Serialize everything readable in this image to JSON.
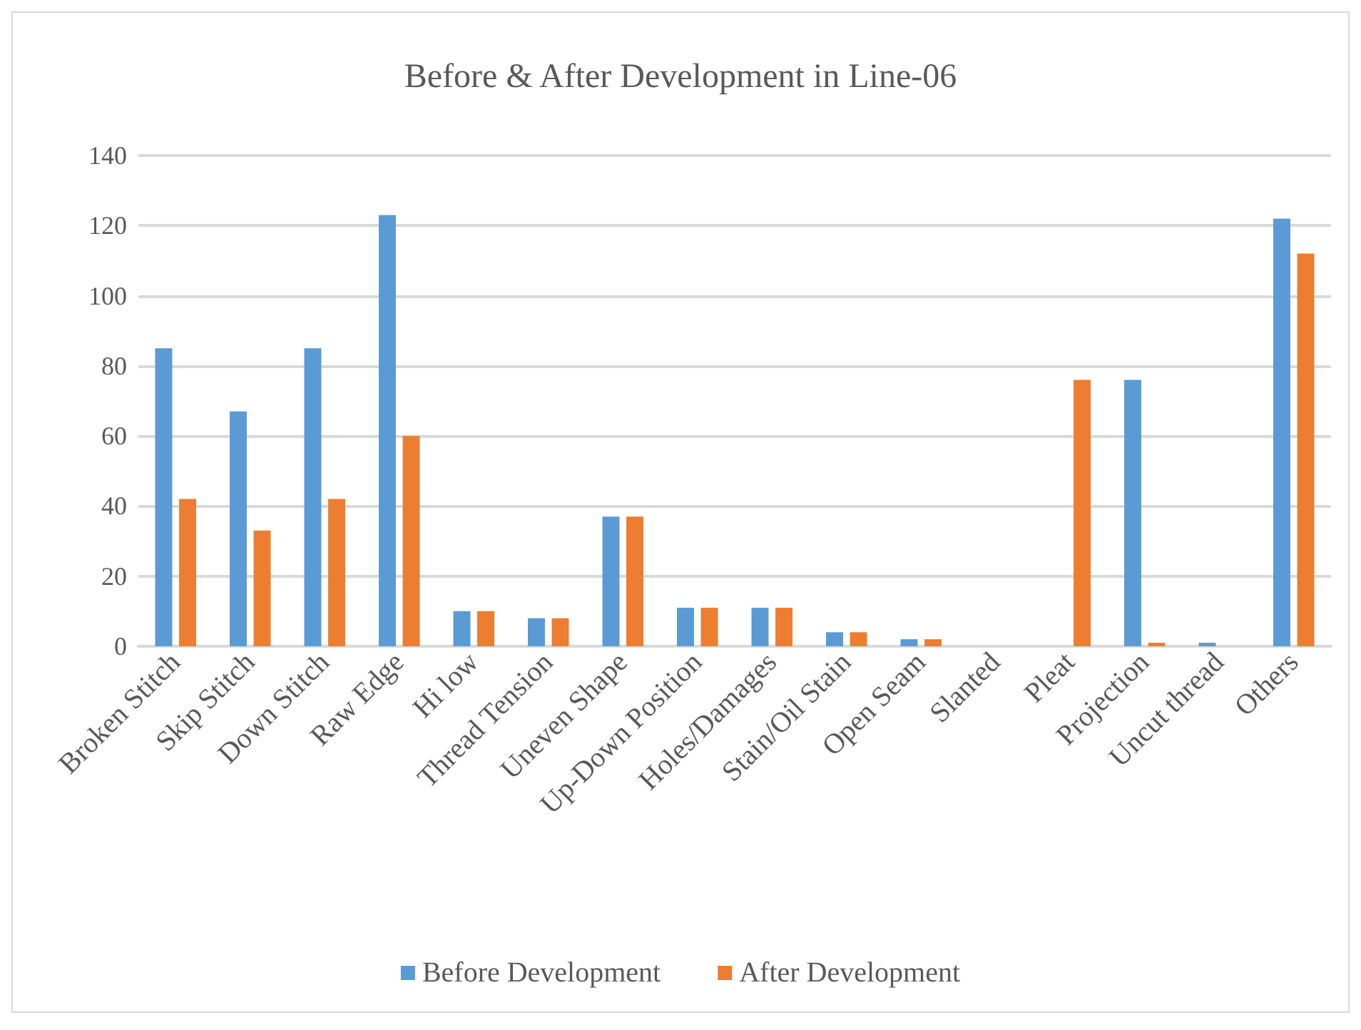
{
  "chart_data": {
    "type": "bar",
    "title": "Before & After Development in Line-06",
    "categories": [
      "Broken Stitch",
      "Skip Stitch",
      "Down Stitch",
      "Raw Edge",
      "Hi low",
      "Thread Tension",
      "Uneven Shape",
      "Up-Down Position",
      "Holes/Damages",
      "Stain/Oil Stain",
      "Open Seam",
      "Slanted",
      "Pleat",
      "Projection",
      "Uncut thread",
      "Others"
    ],
    "series": [
      {
        "name": "Before Development",
        "color": "#5b9bd5",
        "values": [
          85,
          67,
          85,
          123,
          10,
          8,
          37,
          11,
          11,
          4,
          2,
          0,
          0,
          76,
          1,
          122
        ]
      },
      {
        "name": "After Development",
        "color": "#ed7d31",
        "values": [
          42,
          33,
          42,
          60,
          10,
          8,
          37,
          11,
          11,
          4,
          2,
          0,
          76,
          1,
          0,
          112
        ]
      }
    ],
    "ylim": [
      0,
      140
    ],
    "yticks": [
      0,
      20,
      40,
      60,
      80,
      100,
      120,
      140
    ],
    "grid": "y",
    "legend": "bottom"
  }
}
